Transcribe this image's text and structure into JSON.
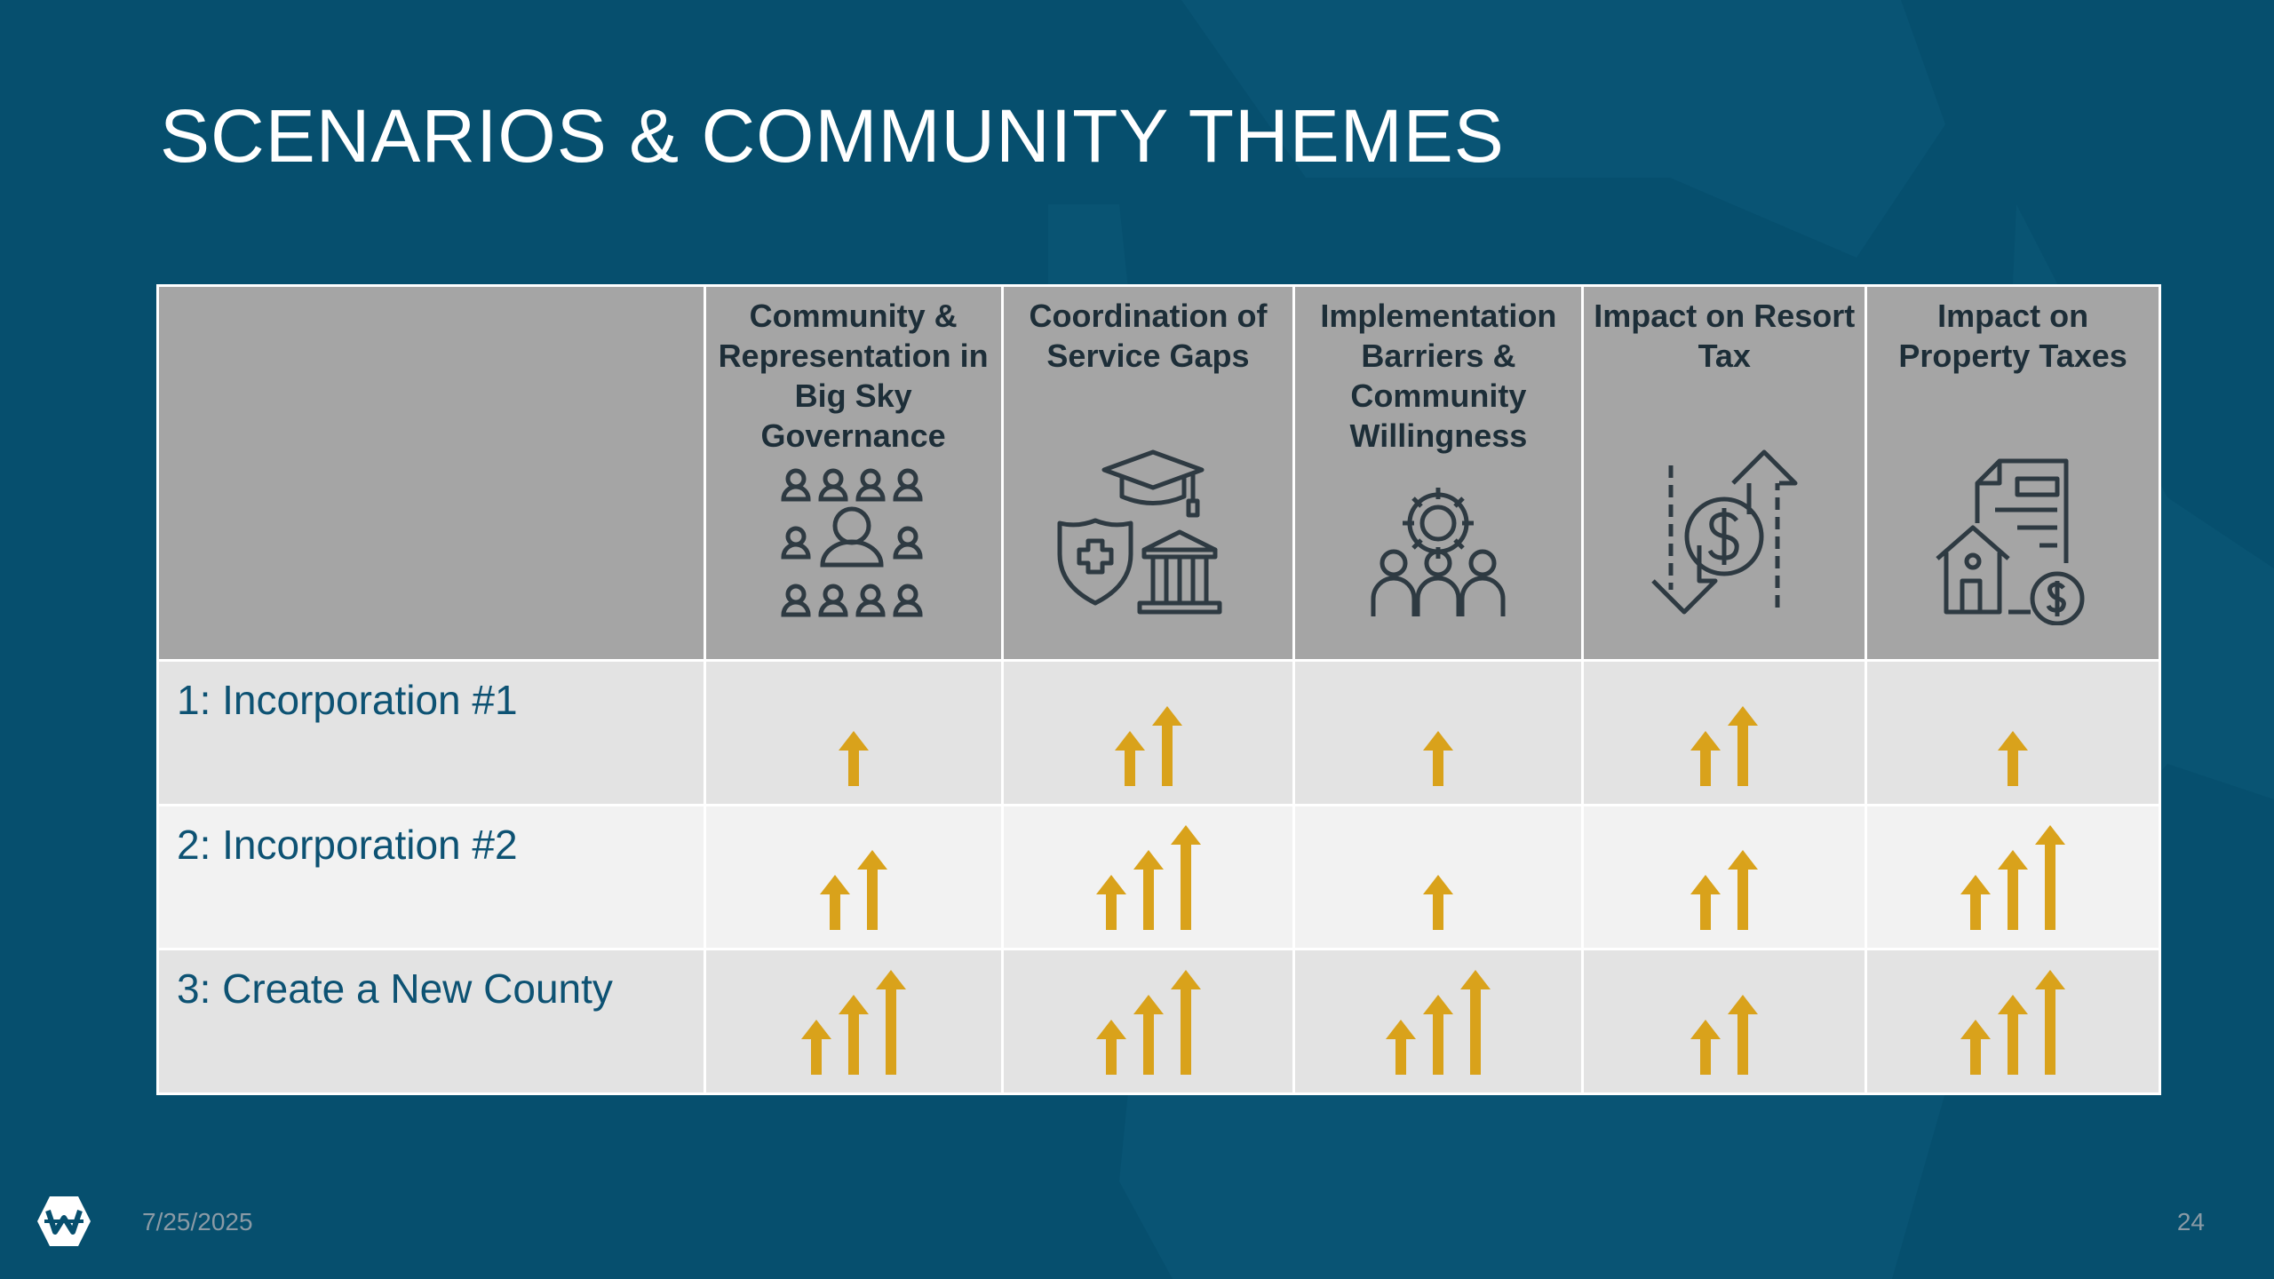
{
  "slide": {
    "title": "SCENARIOS & COMMUNITY THEMES",
    "date": "7/25/2025",
    "page_number": "24"
  },
  "colors": {
    "background": "#064f6e",
    "header_fill": "#a5a5a5",
    "row_dark": "#e3e3e3",
    "row_light": "#f2f2f2",
    "arrow": "#d9a21b",
    "row_label_text": "#0d5273",
    "header_text": "#1d2e38"
  },
  "table": {
    "columns": [
      {
        "label": "Community & Representation in Big Sky Governance",
        "icon": "community-people-icon"
      },
      {
        "label": "Coordination of Service Gaps",
        "icon": "services-shield-graduation-bank-icon"
      },
      {
        "label": "Implementation Barriers & Community Willingness",
        "icon": "team-gear-icon"
      },
      {
        "label": "Impact on Resort Tax",
        "icon": "dollar-up-down-arrows-icon"
      },
      {
        "label": "Impact on Property Taxes",
        "icon": "property-tax-document-icon"
      }
    ],
    "rows": [
      {
        "label": "1: Incorporation #1",
        "ratings": [
          1,
          2,
          1,
          2,
          1
        ]
      },
      {
        "label": "2: Incorporation #2",
        "ratings": [
          2,
          3,
          1,
          2,
          3
        ]
      },
      {
        "label": "3: Create a New County",
        "ratings": [
          3,
          3,
          3,
          2,
          3
        ]
      }
    ],
    "rating_icon": "up-arrow-icon"
  }
}
